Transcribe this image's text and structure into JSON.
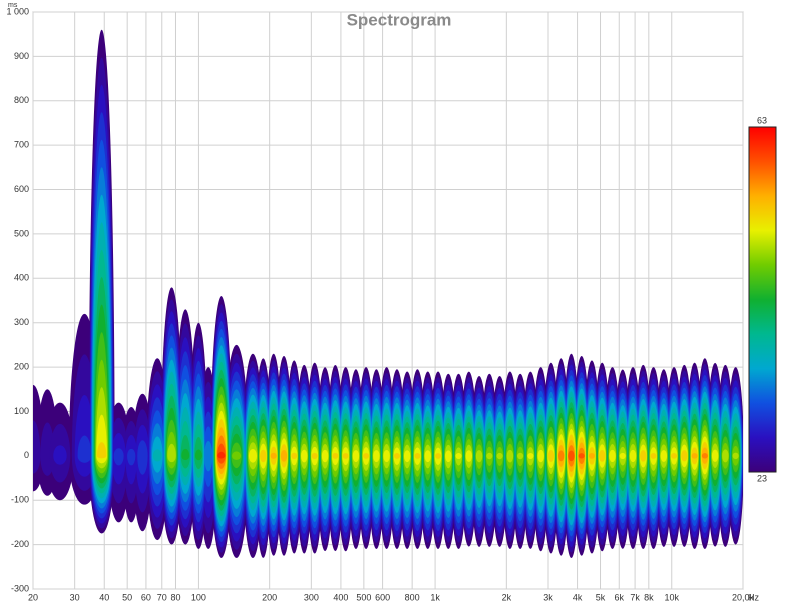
{
  "chart_data": {
    "type": "spectrogram",
    "title": "Spectrogram",
    "x_unit": "Hz",
    "y_unit": "ms",
    "xscale": "log",
    "grid": true,
    "xlim": [
      20,
      20000
    ],
    "ylim": [
      -300,
      1000
    ],
    "xticks": [
      20,
      30,
      40,
      50,
      60,
      70,
      80,
      100,
      200,
      300,
      400,
      500,
      600,
      800,
      {
        "value": 1000,
        "label": "1k"
      },
      {
        "value": 2000,
        "label": "2k"
      },
      {
        "value": 3000,
        "label": "3k"
      },
      {
        "value": 4000,
        "label": "4k"
      },
      {
        "value": 5000,
        "label": "5k"
      },
      {
        "value": 6000,
        "label": "6k"
      },
      {
        "value": 7000,
        "label": "7k"
      },
      {
        "value": 8000,
        "label": "8k"
      },
      {
        "value": 10000,
        "label": "10k"
      },
      {
        "value": 20000,
        "label": "20,0k"
      }
    ],
    "yticks": [
      -300,
      -200,
      -100,
      0,
      100,
      200,
      300,
      400,
      500,
      600,
      700,
      800,
      900,
      {
        "value": 1000,
        "label": "1 000"
      }
    ],
    "zlim": [
      23,
      63
    ],
    "colormap": [
      "#3c007a",
      "#2a10c0",
      "#1050e0",
      "#00a8d0",
      "#00b890",
      "#10b030",
      "#70cc00",
      "#e8f000",
      "#ffb000",
      "#ff5000",
      "#ff0000"
    ],
    "x": [
      20,
      23,
      26,
      33,
      39,
      46,
      52,
      58,
      67,
      77,
      88,
      100,
      110,
      125,
      145,
      170,
      188,
      208,
      230,
      254,
      280,
      310,
      343,
      379,
      419,
      463,
      511,
      565,
      624,
      690,
      762,
      842,
      931,
      1029,
      1137,
      1256,
      1388,
      1534,
      1695,
      1873,
      2070,
      2287,
      2527,
      2793,
      3086,
      3410,
      3768,
      4164,
      4601,
      5084,
      5618,
      6208,
      6860,
      7580,
      8376,
      9256,
      10228,
      11302,
      12489,
      13800,
      15249,
      16850,
      18620
    ],
    "values": [
      27,
      27,
      28,
      30,
      54,
      30,
      30,
      31,
      38,
      51,
      44,
      44,
      35,
      62,
      48,
      53,
      55,
      56,
      57,
      54,
      53,
      54,
      53,
      54,
      54,
      53,
      54,
      53,
      53,
      54,
      53,
      54,
      53,
      54,
      53,
      52,
      53,
      51,
      50,
      50,
      51,
      50,
      52,
      53,
      55,
      59,
      61,
      60,
      56,
      55,
      53,
      52,
      53,
      55,
      54,
      53,
      54,
      55,
      56,
      58,
      53,
      51,
      50
    ],
    "y_top": [
      160,
      150,
      120,
      320,
      960,
      120,
      110,
      140,
      220,
      380,
      330,
      300,
      200,
      360,
      250,
      230,
      220,
      230,
      225,
      215,
      205,
      210,
      200,
      205,
      200,
      195,
      200,
      195,
      200,
      195,
      190,
      195,
      190,
      190,
      185,
      185,
      190,
      180,
      185,
      180,
      190,
      185,
      190,
      200,
      210,
      220,
      230,
      225,
      215,
      210,
      200,
      195,
      200,
      205,
      200,
      195,
      200,
      205,
      210,
      220,
      210,
      205,
      200
    ],
    "y_bottom": [
      -80,
      -90,
      -100,
      -110,
      -175,
      -150,
      -150,
      -170,
      -190,
      -200,
      -200,
      -210,
      -210,
      -230,
      -230,
      -230,
      -230,
      -225,
      -225,
      -220,
      -220,
      -220,
      -215,
      -215,
      -215,
      -210,
      -210,
      -210,
      -210,
      -210,
      -210,
      -210,
      -210,
      -210,
      -210,
      -210,
      -205,
      -205,
      -205,
      -205,
      -210,
      -210,
      -210,
      -215,
      -220,
      -225,
      -230,
      -225,
      -220,
      -215,
      -210,
      -210,
      -210,
      -210,
      -210,
      -205,
      -205,
      -205,
      -210,
      -210,
      -205,
      -205,
      -200
    ]
  }
}
